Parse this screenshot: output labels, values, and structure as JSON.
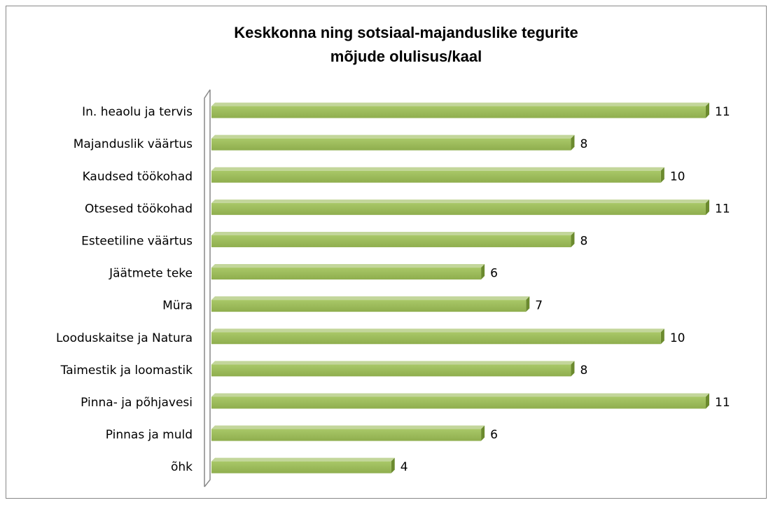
{
  "chart_data": {
    "type": "bar",
    "orientation": "horizontal",
    "title": [
      "Keskkonna ning sotsiaal-majanduslike tegurite",
      "mõjude olulisus/kaal"
    ],
    "categories": [
      "In. heaolu ja tervis",
      "Majanduslik väärtus",
      "Kaudsed töökohad",
      "Otsesed töökohad",
      "Esteetiline väärtus",
      "Jäätmete teke",
      "Müra",
      "Looduskaitse ja Natura",
      "Taimestik ja loomastik",
      "Pinna- ja põhjavesi",
      "Pinnas ja muld",
      "õhk"
    ],
    "values": [
      11,
      8,
      10,
      11,
      8,
      6,
      7,
      10,
      8,
      11,
      6,
      4
    ],
    "color": "#9bbb59",
    "xlim": [
      0,
      11
    ]
  }
}
